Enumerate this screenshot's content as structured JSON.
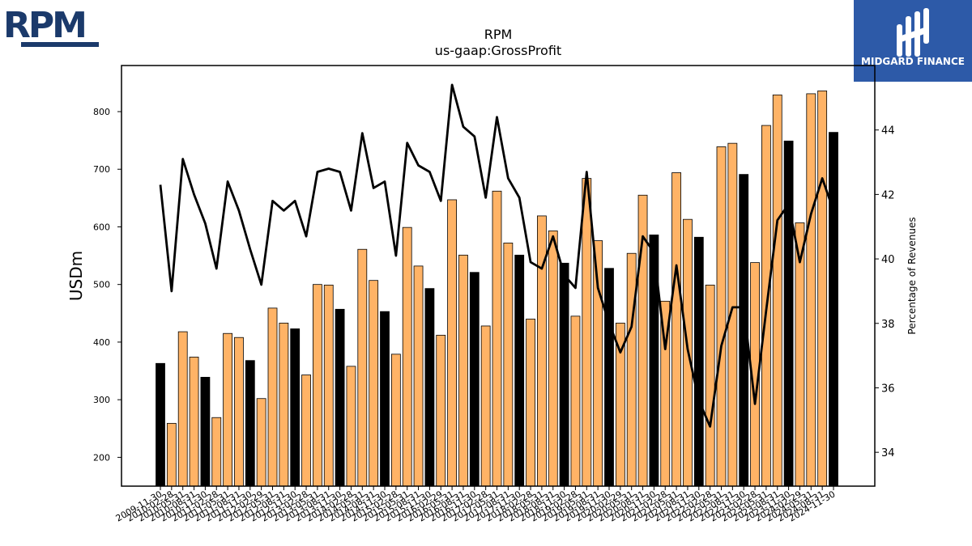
{
  "brand": {
    "left_logo_text": "RPM",
    "left_logo_color": "#1b3a6b",
    "right_logo_text": "MIDGARD FINANCE",
    "right_logo_color": "#2d5aa8"
  },
  "chart_data": {
    "type": "bar",
    "title": "RPM",
    "subtitle": "us-gaap:GrossProfit",
    "ylabel": "USDm",
    "y2label": "Percentage of Revenues",
    "ylim": [
      150,
      880
    ],
    "y2lim": [
      32.95,
      46.0
    ],
    "yticks": [
      200,
      300,
      400,
      500,
      600,
      700,
      800
    ],
    "y2ticks": [
      34,
      36,
      38,
      40,
      42,
      44
    ],
    "grid": false,
    "bar_colors": {
      "annual": "#000000",
      "quarterly": "#ffb366"
    },
    "line_color": "#000000",
    "x": [
      "2009-11-30",
      "2010-02-28",
      "2010-05-31",
      "2010-08-31",
      "2010-11-30",
      "2011-02-28",
      "2011-05-31",
      "2011-08-31",
      "2011-11-30",
      "2012-02-29",
      "2012-05-31",
      "2012-08-31",
      "2012-11-30",
      "2013-02-28",
      "2013-05-31",
      "2013-08-31",
      "2013-11-30",
      "2014-02-28",
      "2014-05-31",
      "2014-08-31",
      "2014-11-30",
      "2015-02-28",
      "2015-05-31",
      "2015-08-31",
      "2015-11-30",
      "2016-02-29",
      "2016-05-31",
      "2016-08-31",
      "2016-11-30",
      "2017-02-28",
      "2017-05-31",
      "2017-08-31",
      "2017-11-30",
      "2018-02-28",
      "2018-05-31",
      "2018-08-31",
      "2018-11-30",
      "2019-02-28",
      "2019-05-31",
      "2019-08-31",
      "2019-11-30",
      "2020-02-29",
      "2020-05-31",
      "2020-08-31",
      "2020-11-30",
      "2021-02-28",
      "2021-05-31",
      "2021-08-31",
      "2021-11-30",
      "2022-02-28",
      "2022-05-31",
      "2022-08-31",
      "2022-11-30",
      "2023-02-28",
      "2023-05-31",
      "2023-08-31",
      "2023-11-30",
      "2024-02-29",
      "2024-05-31",
      "2024-08-31",
      "2024-11-30"
    ],
    "series": [
      {
        "type": "bar",
        "values": [
          363,
          259,
          418,
          374,
          339,
          269,
          415,
          408,
          368,
          302,
          459,
          433,
          423,
          343,
          500,
          499,
          457,
          358,
          561,
          507,
          453,
          379,
          599,
          532,
          493,
          412,
          647,
          551,
          521,
          428,
          662,
          572,
          551,
          440,
          619,
          593,
          537,
          445,
          684,
          576,
          528,
          433,
          554,
          655,
          586,
          471,
          694,
          613,
          582,
          499,
          739,
          745,
          691,
          538,
          776,
          829,
          749,
          607,
          831,
          836,
          764
        ],
        "annual": [
          true,
          false,
          false,
          false,
          true,
          false,
          false,
          false,
          true,
          false,
          false,
          false,
          true,
          false,
          false,
          false,
          true,
          false,
          false,
          false,
          true,
          false,
          false,
          false,
          true,
          false,
          false,
          false,
          true,
          false,
          false,
          false,
          true,
          false,
          false,
          false,
          true,
          false,
          false,
          false,
          true,
          false,
          false,
          false,
          true,
          false,
          false,
          false,
          true,
          false,
          false,
          false,
          true,
          false,
          false,
          false,
          true,
          false,
          false,
          false,
          true
        ]
      },
      {
        "type": "line",
        "axis": "right",
        "values": [
          42.3,
          39.0,
          43.1,
          42.0,
          41.1,
          39.7,
          42.4,
          41.5,
          40.3,
          39.2,
          41.8,
          41.5,
          41.8,
          40.7,
          42.7,
          42.8,
          42.7,
          41.5,
          43.9,
          42.2,
          42.4,
          40.1,
          43.6,
          42.9,
          42.7,
          41.8,
          45.4,
          44.1,
          43.8,
          41.9,
          44.4,
          42.5,
          41.9,
          39.9,
          39.7,
          40.7,
          39.5,
          39.1,
          42.7,
          39.1,
          38.0,
          37.1,
          37.9,
          40.7,
          40.2,
          37.2,
          39.8,
          37.2,
          35.6,
          34.8,
          37.3,
          38.5,
          38.5,
          35.5,
          38.4,
          41.2,
          41.7,
          39.9,
          41.4,
          42.5,
          41.5
        ]
      }
    ]
  }
}
